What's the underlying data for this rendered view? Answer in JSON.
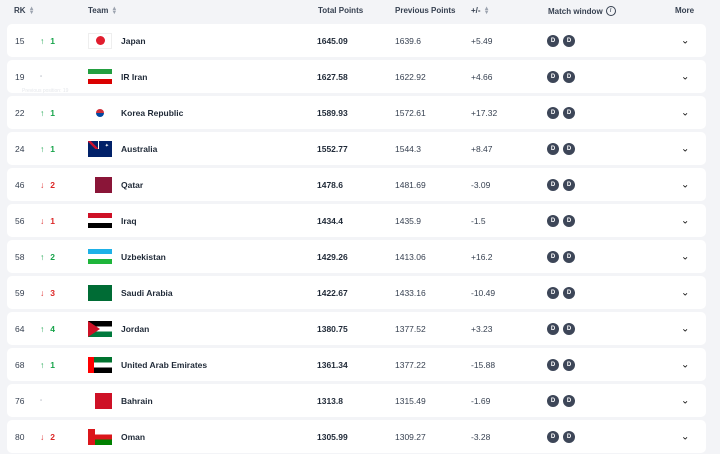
{
  "headers": {
    "rk": "RK",
    "team": "Team",
    "total": "Total Points",
    "prev": "Previous Points",
    "diff": "+/-",
    "match": "Match window",
    "more": "More"
  },
  "match_badge": "D",
  "tooltip": "Previous position: 19",
  "rows": [
    {
      "rk": "15",
      "dir": "up",
      "mv": "1",
      "team": "Japan",
      "flag": "japan",
      "total": "1645.09",
      "prev": "1639.6",
      "diff": "+5.49"
    },
    {
      "rk": "19",
      "dir": "eq",
      "mv": "",
      "team": "IR Iran",
      "flag": "iran",
      "total": "1627.58",
      "prev": "1622.92",
      "diff": "+4.66"
    },
    {
      "rk": "22",
      "dir": "up",
      "mv": "1",
      "team": "Korea Republic",
      "flag": "korea",
      "total": "1589.93",
      "prev": "1572.61",
      "diff": "+17.32"
    },
    {
      "rk": "24",
      "dir": "up",
      "mv": "1",
      "team": "Australia",
      "flag": "australia",
      "total": "1552.77",
      "prev": "1544.3",
      "diff": "+8.47"
    },
    {
      "rk": "46",
      "dir": "down",
      "mv": "2",
      "team": "Qatar",
      "flag": "qatar",
      "total": "1478.6",
      "prev": "1481.69",
      "diff": "-3.09"
    },
    {
      "rk": "56",
      "dir": "down",
      "mv": "1",
      "team": "Iraq",
      "flag": "iraq",
      "total": "1434.4",
      "prev": "1435.9",
      "diff": "-1.5"
    },
    {
      "rk": "58",
      "dir": "up",
      "mv": "2",
      "team": "Uzbekistan",
      "flag": "uzbekistan",
      "total": "1429.26",
      "prev": "1413.06",
      "diff": "+16.2"
    },
    {
      "rk": "59",
      "dir": "down",
      "mv": "3",
      "team": "Saudi Arabia",
      "flag": "saudi",
      "total": "1422.67",
      "prev": "1433.16",
      "diff": "-10.49"
    },
    {
      "rk": "64",
      "dir": "up",
      "mv": "4",
      "team": "Jordan",
      "flag": "jordan",
      "total": "1380.75",
      "prev": "1377.52",
      "diff": "+3.23"
    },
    {
      "rk": "68",
      "dir": "up",
      "mv": "1",
      "team": "United Arab Emirates",
      "flag": "uae",
      "total": "1361.34",
      "prev": "1377.22",
      "diff": "-15.88"
    },
    {
      "rk": "76",
      "dir": "eq",
      "mv": "",
      "team": "Bahrain",
      "flag": "bahrain",
      "total": "1313.8",
      "prev": "1315.49",
      "diff": "-1.69"
    },
    {
      "rk": "80",
      "dir": "down",
      "mv": "2",
      "team": "Oman",
      "flag": "oman",
      "total": "1305.99",
      "prev": "1309.27",
      "diff": "-3.28"
    }
  ]
}
